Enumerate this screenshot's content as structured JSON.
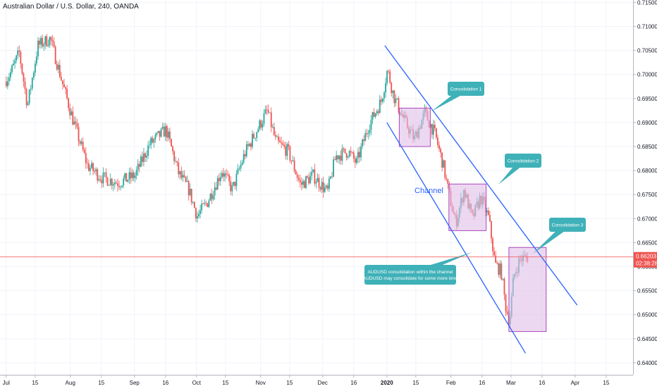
{
  "header": {
    "title": "Australian Dollar / U.S. Dollar, 240, OANDA"
  },
  "chart_data": {
    "type": "candlestick",
    "symbol": "AUDUSD",
    "timeframe": "240",
    "ylim": [
      0.6375,
      0.7155
    ],
    "y_ticks": [
      "0.71500",
      "0.71000",
      "0.70500",
      "0.70000",
      "0.69500",
      "0.69000",
      "0.68500",
      "0.68000",
      "0.67500",
      "0.67000",
      "0.66500",
      "0.66000",
      "0.65500",
      "0.65000",
      "0.64500",
      "0.64000"
    ],
    "x_ticks": [
      "Jul",
      "15",
      "Aug",
      "15",
      "Sep",
      "16",
      "Oct",
      "15",
      "Nov",
      "15",
      "Dec",
      "16",
      "2020",
      "15",
      "Feb",
      "16",
      "Mar",
      "16",
      "Apr",
      "15"
    ],
    "x_tick_t": [
      0,
      14,
      31,
      46,
      62,
      77,
      92,
      106,
      123,
      137,
      153,
      168,
      184,
      198,
      215,
      230,
      244,
      259,
      275,
      290
    ],
    "price_path": [
      [
        0,
        0.6985
      ],
      [
        3,
        0.7005
      ],
      [
        7,
        0.7045
      ],
      [
        11,
        0.6935
      ],
      [
        16,
        0.706
      ],
      [
        22,
        0.7075
      ],
      [
        28,
        0.698
      ],
      [
        33,
        0.6905
      ],
      [
        40,
        0.681
      ],
      [
        47,
        0.6785
      ],
      [
        55,
        0.6775
      ],
      [
        63,
        0.679
      ],
      [
        70,
        0.6855
      ],
      [
        78,
        0.6885
      ],
      [
        84,
        0.6795
      ],
      [
        89,
        0.676
      ],
      [
        93,
        0.6705
      ],
      [
        98,
        0.6735
      ],
      [
        105,
        0.68
      ],
      [
        110,
        0.676
      ],
      [
        116,
        0.6835
      ],
      [
        122,
        0.6885
      ],
      [
        127,
        0.6925
      ],
      [
        131,
        0.686
      ],
      [
        137,
        0.684
      ],
      [
        143,
        0.677
      ],
      [
        149,
        0.679
      ],
      [
        156,
        0.6755
      ],
      [
        160,
        0.683
      ],
      [
        166,
        0.684
      ],
      [
        170,
        0.6815
      ],
      [
        176,
        0.6895
      ],
      [
        182,
        0.6945
      ],
      [
        185,
        0.701
      ],
      [
        188,
        0.6955
      ],
      [
        193,
        0.6905
      ],
      [
        198,
        0.6865
      ],
      [
        203,
        0.692
      ],
      [
        208,
        0.6875
      ],
      [
        212,
        0.681
      ],
      [
        215,
        0.6745
      ],
      [
        218,
        0.669
      ],
      [
        222,
        0.676
      ],
      [
        226,
        0.67
      ],
      [
        230,
        0.6745
      ],
      [
        234,
        0.67
      ],
      [
        237,
        0.6605
      ],
      [
        240,
        0.659
      ],
      [
        242,
        0.652
      ],
      [
        244,
        0.6485
      ],
      [
        246,
        0.658
      ],
      [
        249,
        0.6615
      ],
      [
        252,
        0.662
      ]
    ],
    "current_price": 0.66203,
    "current_price_label": "0.66203",
    "countdown_label": "02:38:28",
    "annotations": {
      "channel_label": "Channel",
      "upper_line": [
        [
          183,
          0.706
        ],
        [
          276,
          0.652
        ]
      ],
      "lower_line": [
        [
          184,
          0.69
        ],
        [
          251,
          0.642
        ]
      ],
      "boxes": [
        {
          "x0": 190,
          "x1": 205,
          "y0": 0.685,
          "y1": 0.693
        },
        {
          "x0": 214,
          "x1": 232,
          "y0": 0.6675,
          "y1": 0.6772
        },
        {
          "x0": 243,
          "x1": 261,
          "y0": 0.6465,
          "y1": 0.664
        }
      ],
      "callouts": [
        {
          "text": "Consolidation 1"
        },
        {
          "text": "Consolidation 2"
        },
        {
          "text": "Consolidation 3"
        },
        {
          "text": "AUDUSD consolidation within the channel"
        },
        {
          "text": "AUDUSD may consolidate for some more time"
        }
      ]
    },
    "colors": {
      "up": "#26a69a",
      "down": "#ef5350",
      "channel": "#2962ff",
      "callout": "#3fb1b8",
      "box_fill": "#e1bee7",
      "box_stroke": "#ab47bc",
      "price_line": "#f06262"
    }
  }
}
